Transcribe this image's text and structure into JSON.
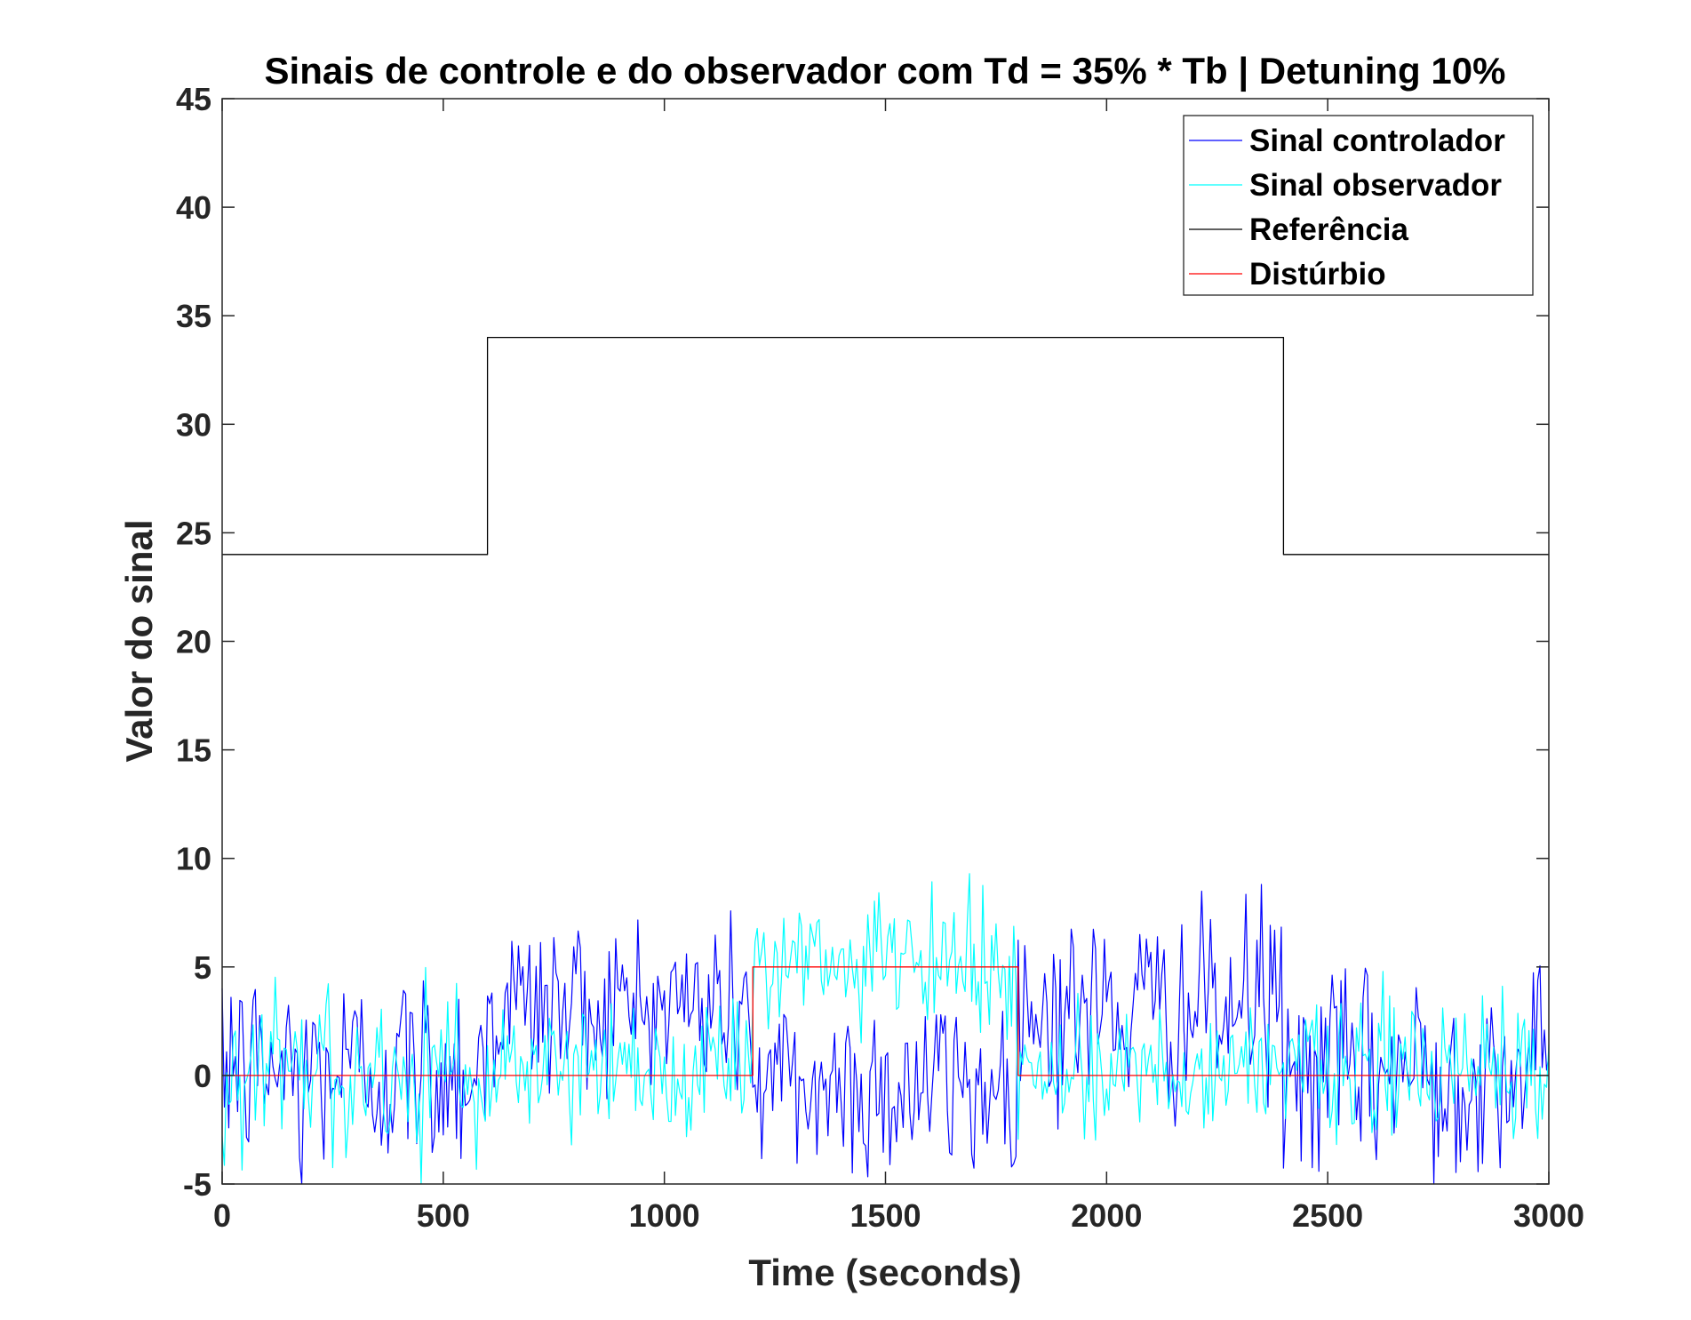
{
  "chart_data": {
    "type": "line",
    "title": "Sinais de controle e do observador com Td = 35% * Tb | Detuning 10%",
    "xlabel": "Time (seconds)",
    "ylabel": "Valor do sinal",
    "xlim": [
      0,
      3000
    ],
    "ylim": [
      -5,
      45
    ],
    "xticks": [
      0,
      500,
      1000,
      1500,
      2000,
      2500,
      3000
    ],
    "yticks": [
      -5,
      0,
      5,
      10,
      15,
      20,
      25,
      30,
      35,
      40,
      45
    ],
    "grid": false,
    "legend_position": "top-right",
    "sample_period": 5,
    "series": [
      {
        "name": "Sinal controlador",
        "color": "#0000ff",
        "kind": "noisy",
        "segments": [
          {
            "x": [
              0,
              600
            ],
            "center": 0.3,
            "amplitude": 4.2,
            "stdev": 2.4
          },
          {
            "x": [
              600,
              1200
            ],
            "center": 3.2,
            "amplitude": 4.5,
            "stdev": 2.2
          },
          {
            "x": [
              1200,
              1800
            ],
            "center": -0.5,
            "amplitude": 4.3,
            "stdev": 2.3
          },
          {
            "x": [
              1800,
              2400
            ],
            "center": 3.0,
            "amplitude": 5.5,
            "stdev": 2.3
          },
          {
            "x": [
              2400,
              3000
            ],
            "center": 0.3,
            "amplitude": 4.8,
            "stdev": 2.4
          }
        ],
        "extremes": [
          [
            20,
            3.6
          ],
          [
            180,
            -5.0
          ],
          [
            2350,
            8.8
          ],
          [
            2420,
            0.4
          ],
          [
            2740,
            -5.0
          ]
        ]
      },
      {
        "name": "Sinal observador",
        "color": "#00ffff",
        "kind": "noisy",
        "segments": [
          {
            "x": [
              0,
              600
            ],
            "center": 0.3,
            "amplitude": 4.8,
            "stdev": 2.0
          },
          {
            "x": [
              600,
              1200
            ],
            "center": 0.3,
            "amplitude": 3.5,
            "stdev": 1.5
          },
          {
            "x": [
              1200,
              1800
            ],
            "center": 5.0,
            "amplitude": 4.3,
            "stdev": 1.6
          },
          {
            "x": [
              1800,
              2400
            ],
            "center": 0.3,
            "amplitude": 3.5,
            "stdev": 1.5
          },
          {
            "x": [
              2400,
              3000
            ],
            "center": 0.3,
            "amplitude": 4.5,
            "stdev": 1.8
          }
        ],
        "extremes": [
          [
            0,
            -2.8
          ],
          [
            450,
            -5.0
          ],
          [
            1690,
            9.3
          ]
        ]
      },
      {
        "name": "Referência",
        "color": "#000000",
        "kind": "step",
        "x": [
          0,
          600,
          600,
          2400,
          2400,
          3000
        ],
        "y": [
          24,
          24,
          34,
          34,
          24,
          24
        ]
      },
      {
        "name": "Distúrbio",
        "color": "#ff0000",
        "kind": "step",
        "x": [
          0,
          1200,
          1200,
          1800,
          1800,
          3000
        ],
        "y": [
          0,
          0,
          5,
          5,
          0,
          0
        ]
      }
    ]
  }
}
